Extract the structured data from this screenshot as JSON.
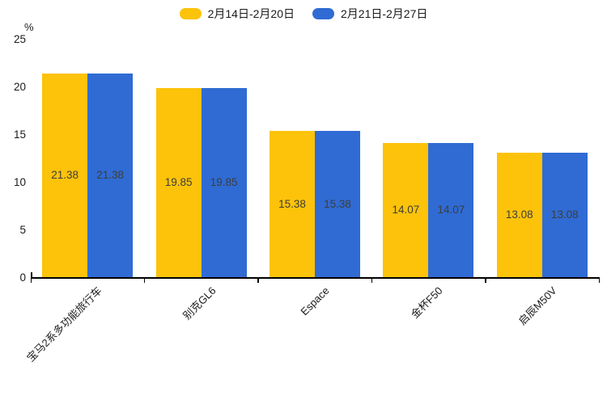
{
  "chart": {
    "unit": "%",
    "colors": {
      "series1": "#FCC30A",
      "series2": "#2F6BD3",
      "axis": "#000000",
      "value_text": "#3d3d3d"
    }
  },
  "chart_data": {
    "type": "bar",
    "title": "",
    "categories": [
      "宝马2系多功能旅行车",
      "别克GL6",
      "Espace",
      "金杯F50",
      "启辰M50V"
    ],
    "series": [
      {
        "name": "2月14日-2月20日",
        "color": "#FCC30A",
        "values": [
          21.38,
          19.85,
          15.38,
          14.07,
          13.08
        ]
      },
      {
        "name": "2月21日-2月27日",
        "color": "#2F6BD3",
        "values": [
          21.38,
          19.85,
          15.38,
          14.07,
          13.08
        ]
      }
    ],
    "value_labels": [
      "21.38",
      "19.85",
      "15.38",
      "14.07",
      "13.08"
    ],
    "xlabel": "",
    "ylabel": "%",
    "yticks": [
      0,
      5,
      10,
      15,
      20,
      25
    ],
    "ylim": [
      0,
      25
    ],
    "grid": false,
    "legend_position": "top-center",
    "x_label_rotation": -45
  }
}
